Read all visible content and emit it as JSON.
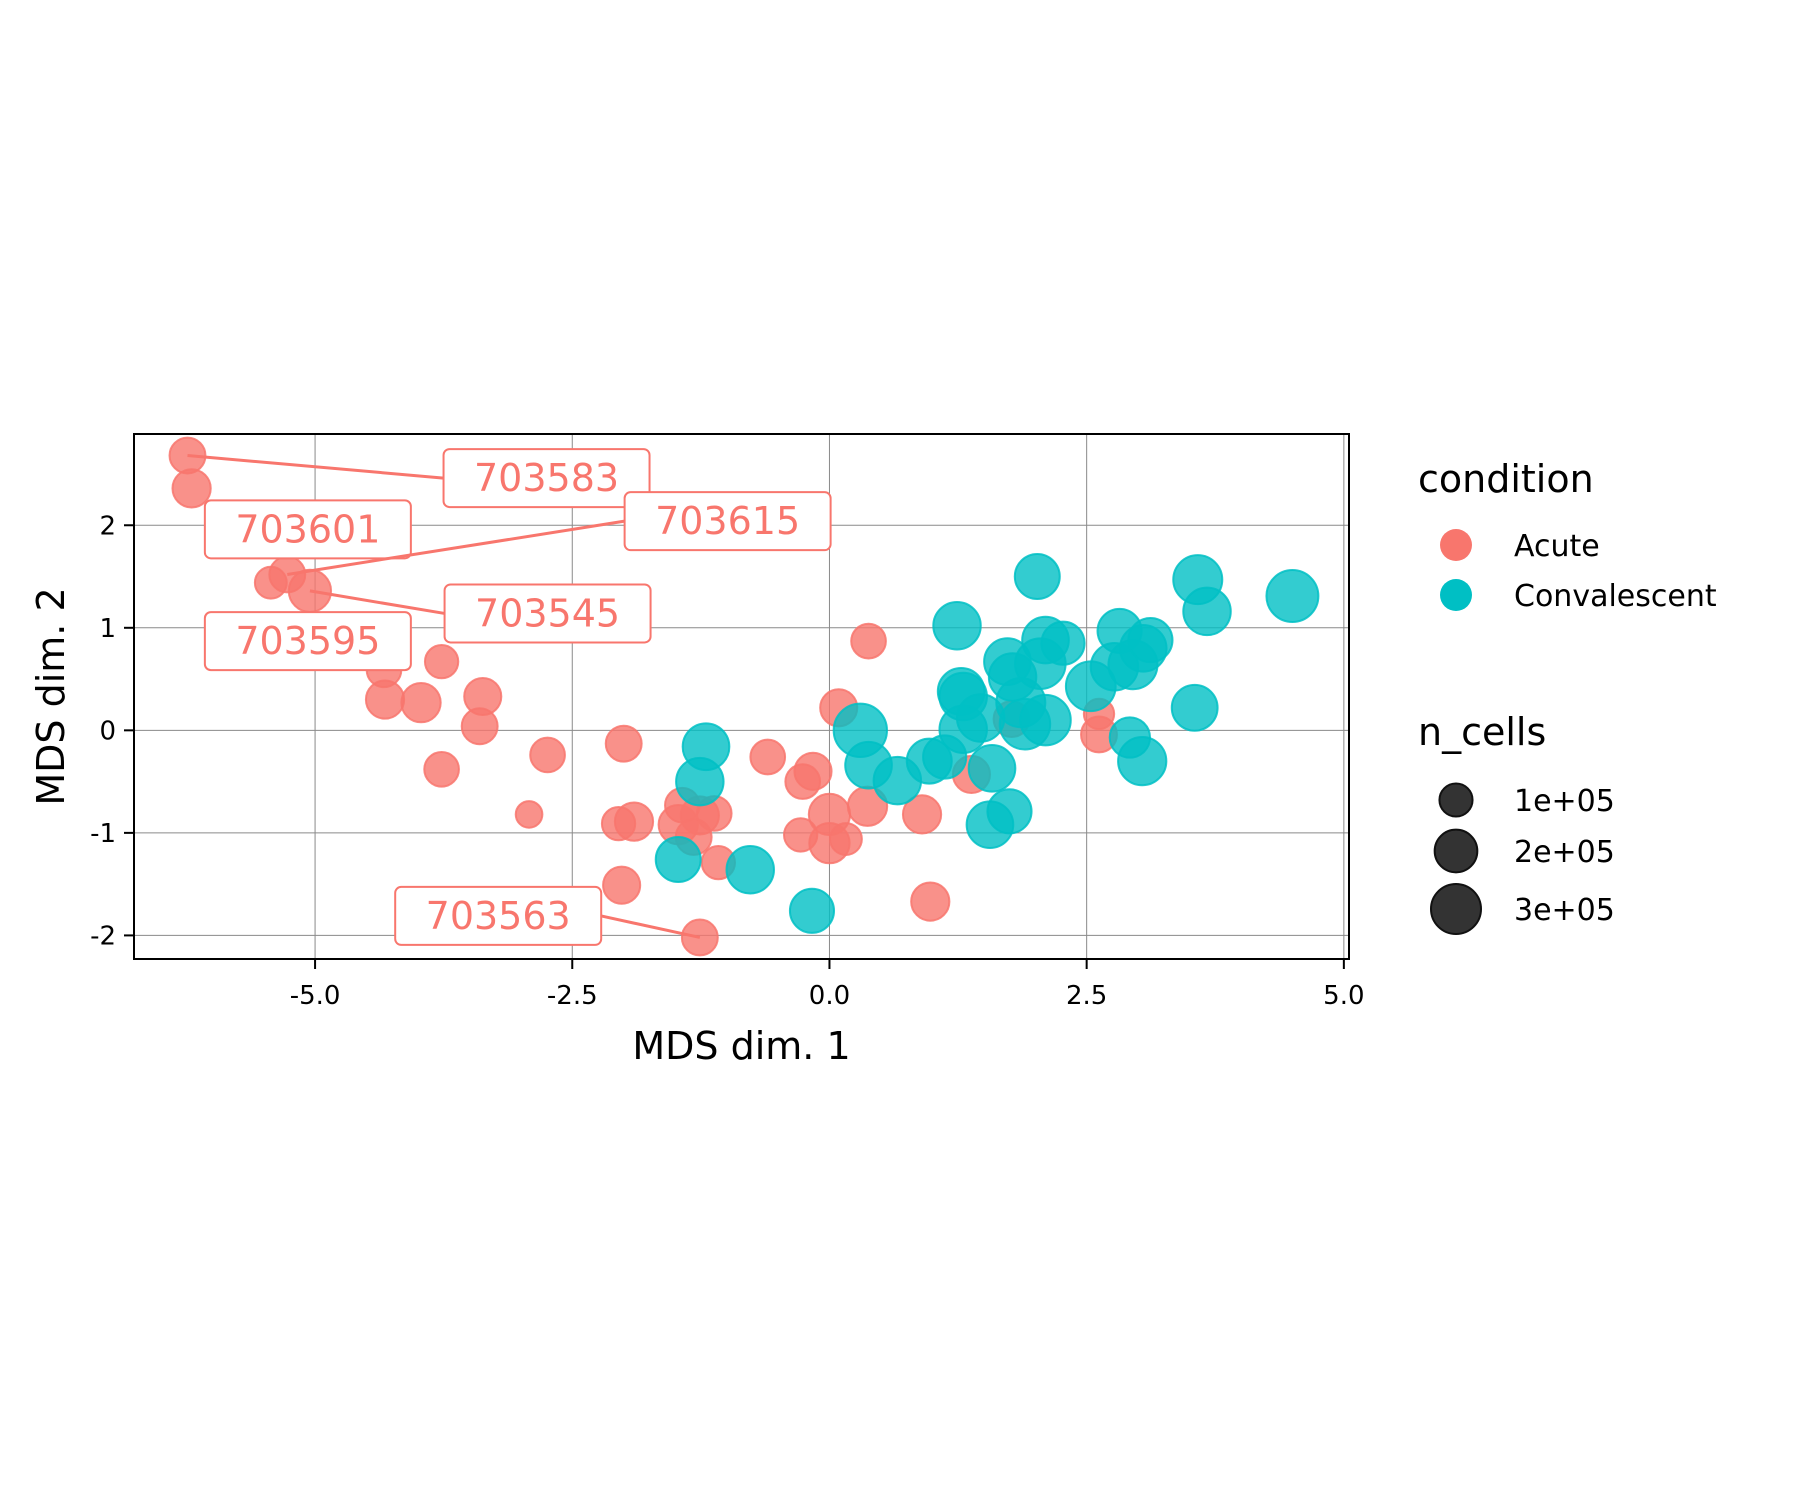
{
  "chart_data": {
    "type": "scatter",
    "title": "",
    "xlabel": "MDS dim. 1",
    "ylabel": "MDS dim. 2",
    "xlim": [
      -6.76,
      5.05
    ],
    "ylim": [
      -2.23,
      2.89
    ],
    "xticks": [
      -5.0,
      -2.5,
      0.0,
      2.5,
      5.0
    ],
    "xtick_labels": [
      "-5.0",
      "-2.5",
      "0.0",
      "2.5",
      "5.0"
    ],
    "yticks": [
      -2,
      -1,
      0,
      1,
      2
    ],
    "ytick_labels": [
      "-2",
      "-1",
      "0",
      "1",
      "2"
    ],
    "grid": true,
    "colors": {
      "Acute": "#F8766D",
      "Convalescent": "#00BFC4",
      "size_legend": "#333333"
    },
    "legend": {
      "placement": "right",
      "color_title": "condition",
      "color_entries": [
        "Acute",
        "Convalescent"
      ],
      "size_title": "n_cells",
      "size_entries": [
        {
          "label": "1e+05",
          "value": 100000
        },
        {
          "label": "2e+05",
          "value": 200000
        },
        {
          "label": "3e+05",
          "value": 300000
        }
      ]
    },
    "series": [
      {
        "name": "Acute",
        "points": [
          {
            "x": -6.24,
            "y": 2.68,
            "n": 90000,
            "id": "703583"
          },
          {
            "x": -6.2,
            "y": 2.36,
            "n": 110000
          },
          {
            "x": -5.27,
            "y": 1.52,
            "n": 90000,
            "id": "703615"
          },
          {
            "x": -5.43,
            "y": 1.44,
            "n": 60000
          },
          {
            "x": -5.05,
            "y": 1.36,
            "n": 150000,
            "id": "703545"
          },
          {
            "x": -4.33,
            "y": 0.59,
            "n": 80000
          },
          {
            "x": -4.32,
            "y": 0.3,
            "n": 110000
          },
          {
            "x": -3.97,
            "y": 0.27,
            "n": 120000
          },
          {
            "x": -3.77,
            "y": 0.67,
            "n": 70000
          },
          {
            "x": -3.37,
            "y": 0.33,
            "n": 100000
          },
          {
            "x": -3.4,
            "y": 0.04,
            "n": 90000
          },
          {
            "x": -3.77,
            "y": -0.38,
            "n": 80000
          },
          {
            "x": -2.74,
            "y": -0.24,
            "n": 80000
          },
          {
            "x": -2.92,
            "y": -0.82,
            "n": 30000
          },
          {
            "x": -2.0,
            "y": -0.13,
            "n": 90000
          },
          {
            "x": -2.05,
            "y": -0.91,
            "n": 70000
          },
          {
            "x": -1.9,
            "y": -0.89,
            "n": 110000
          },
          {
            "x": -2.02,
            "y": -1.51,
            "n": 100000
          },
          {
            "x": -1.43,
            "y": -0.73,
            "n": 80000
          },
          {
            "x": -1.47,
            "y": -0.92,
            "n": 120000
          },
          {
            "x": -1.26,
            "y": -0.83,
            "n": 110000
          },
          {
            "x": -1.12,
            "y": -0.81,
            "n": 80000
          },
          {
            "x": -1.32,
            "y": -1.04,
            "n": 90000
          },
          {
            "x": -1.08,
            "y": -1.29,
            "n": 70000
          },
          {
            "x": -1.26,
            "y": -2.02,
            "n": 90000,
            "id": "703563"
          },
          {
            "x": -0.6,
            "y": -0.26,
            "n": 80000
          },
          {
            "x": -0.16,
            "y": -0.4,
            "n": 100000
          },
          {
            "x": -0.26,
            "y": -0.5,
            "n": 80000
          },
          {
            "x": -0.28,
            "y": -1.02,
            "n": 70000
          },
          {
            "x": 0.0,
            "y": -0.82,
            "n": 140000
          },
          {
            "x": 0.0,
            "y": -1.1,
            "n": 130000
          },
          {
            "x": 0.16,
            "y": -1.06,
            "n": 60000
          },
          {
            "x": 0.37,
            "y": -0.74,
            "n": 120000
          },
          {
            "x": 0.09,
            "y": 0.22,
            "n": 100000
          },
          {
            "x": 0.38,
            "y": 0.87,
            "n": 80000
          },
          {
            "x": 0.9,
            "y": -0.82,
            "n": 110000
          },
          {
            "x": 0.98,
            "y": -1.67,
            "n": 110000
          },
          {
            "x": 1.38,
            "y": -0.43,
            "n": 100000
          },
          {
            "x": 1.77,
            "y": 0.11,
            "n": 90000
          },
          {
            "x": 2.62,
            "y": 0.16,
            "n": 50000
          },
          {
            "x": 2.62,
            "y": -0.04,
            "n": 90000
          },
          {
            "x": -6.15,
            "y": 2.0,
            "n": 0,
            "id": "703601",
            "hidden": true
          },
          {
            "x": -6.15,
            "y": 1.0,
            "n": 0,
            "id": "703595",
            "hidden": true
          }
        ]
      },
      {
        "name": "Convalescent",
        "points": [
          {
            "x": -1.2,
            "y": -0.16,
            "n": 200000
          },
          {
            "x": -1.26,
            "y": -0.5,
            "n": 210000
          },
          {
            "x": -1.47,
            "y": -1.26,
            "n": 180000
          },
          {
            "x": -0.77,
            "y": -1.36,
            "n": 210000
          },
          {
            "x": -0.17,
            "y": -1.76,
            "n": 170000
          },
          {
            "x": 0.3,
            "y": 0.0,
            "n": 290000
          },
          {
            "x": 0.38,
            "y": -0.34,
            "n": 200000
          },
          {
            "x": 0.66,
            "y": -0.49,
            "n": 210000
          },
          {
            "x": 0.97,
            "y": -0.3,
            "n": 180000
          },
          {
            "x": 1.12,
            "y": -0.26,
            "n": 160000
          },
          {
            "x": 1.24,
            "y": 1.02,
            "n": 210000
          },
          {
            "x": 1.28,
            "y": 0.38,
            "n": 200000
          },
          {
            "x": 1.3,
            "y": 0.33,
            "n": 210000
          },
          {
            "x": 1.3,
            "y": 0.01,
            "n": 210000
          },
          {
            "x": 1.47,
            "y": 0.12,
            "n": 210000
          },
          {
            "x": 1.58,
            "y": -0.37,
            "n": 200000
          },
          {
            "x": 1.56,
            "y": -0.92,
            "n": 200000
          },
          {
            "x": 1.75,
            "y": -0.79,
            "n": 170000
          },
          {
            "x": 1.73,
            "y": 0.67,
            "n": 200000
          },
          {
            "x": 1.78,
            "y": 0.52,
            "n": 210000
          },
          {
            "x": 1.86,
            "y": 0.27,
            "n": 230000
          },
          {
            "x": 1.9,
            "y": 0.06,
            "n": 250000
          },
          {
            "x": 2.1,
            "y": 0.1,
            "n": 250000
          },
          {
            "x": 2.02,
            "y": 1.5,
            "n": 180000
          },
          {
            "x": 2.1,
            "y": 0.88,
            "n": 200000
          },
          {
            "x": 2.05,
            "y": 0.65,
            "n": 250000
          },
          {
            "x": 2.27,
            "y": 0.85,
            "n": 160000
          },
          {
            "x": 2.54,
            "y": 0.43,
            "n": 240000
          },
          {
            "x": 2.82,
            "y": 0.97,
            "n": 170000
          },
          {
            "x": 2.77,
            "y": 0.62,
            "n": 210000
          },
          {
            "x": 2.95,
            "y": 0.64,
            "n": 230000
          },
          {
            "x": 3.05,
            "y": 0.8,
            "n": 200000
          },
          {
            "x": 3.12,
            "y": 0.88,
            "n": 170000
          },
          {
            "x": 2.92,
            "y": -0.07,
            "n": 130000
          },
          {
            "x": 3.04,
            "y": -0.3,
            "n": 220000
          },
          {
            "x": 3.55,
            "y": 0.22,
            "n": 190000
          },
          {
            "x": 3.58,
            "y": 1.47,
            "n": 230000
          },
          {
            "x": 3.67,
            "y": 1.16,
            "n": 210000
          },
          {
            "x": 4.5,
            "y": 1.31,
            "n": 270000
          }
        ]
      }
    ],
    "labels": [
      {
        "text": "703583",
        "x": -6.24,
        "y": 2.68,
        "box_x": -2.75,
        "box_y": 2.46
      },
      {
        "text": "703601",
        "x": -6.2,
        "y": 2.36,
        "box_x": -5.07,
        "box_y": 1.96,
        "no_segment": true
      },
      {
        "text": "703615",
        "x": -5.27,
        "y": 1.52,
        "box_x": -0.99,
        "box_y": 2.04
      },
      {
        "text": "703545",
        "x": -5.05,
        "y": 1.36,
        "box_x": -2.74,
        "box_y": 1.14
      },
      {
        "text": "703595",
        "x": -5.3,
        "y": 0.9,
        "box_x": -5.07,
        "box_y": 0.87,
        "no_segment": true
      },
      {
        "text": "703563",
        "x": -1.26,
        "y": -2.02,
        "box_x": -3.22,
        "box_y": -1.81
      }
    ]
  }
}
